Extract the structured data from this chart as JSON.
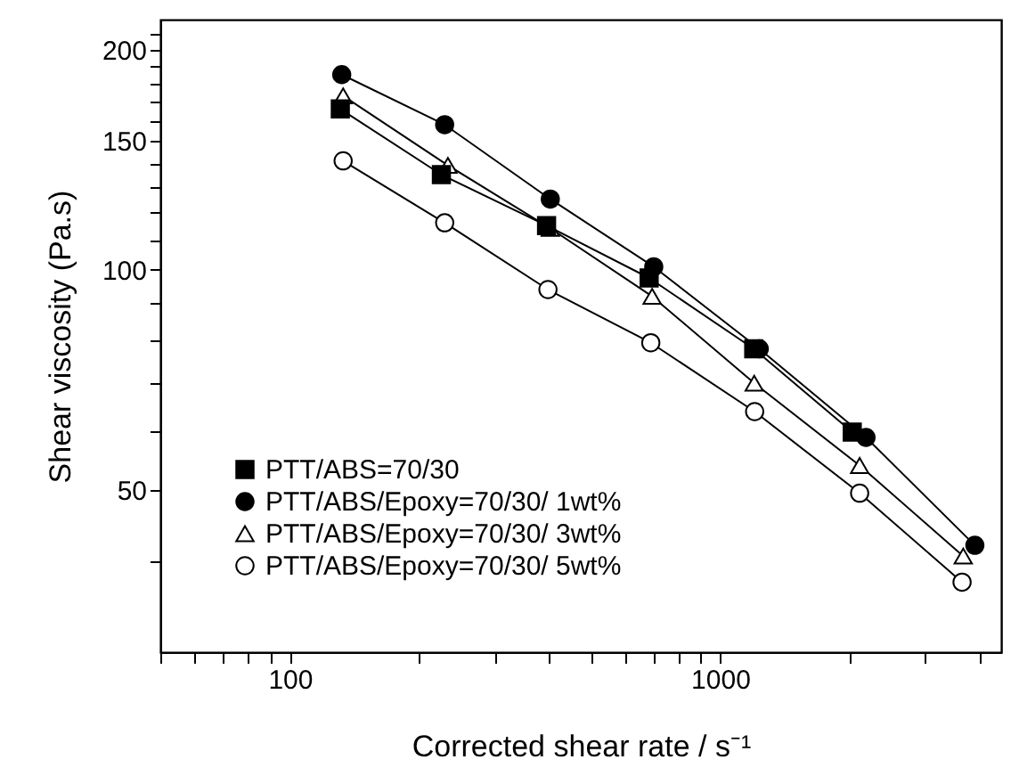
{
  "chart_data": {
    "type": "line",
    "xlabel": "Corrected shear rate / s⁻¹",
    "ylabel": "Shear viscosity (Pa.s)",
    "log": "xy",
    "grid": false,
    "legend": "bottom left",
    "line_style": "solid",
    "xlim": [
      50,
      4500
    ],
    "ylim": [
      30,
      220
    ],
    "xticks": [
      {
        "value": 50,
        "label": null
      },
      {
        "value": 60,
        "label": null
      },
      {
        "value": 70,
        "label": null
      },
      {
        "value": 80,
        "label": null
      },
      {
        "value": 90,
        "label": null
      },
      100,
      {
        "value": 200,
        "label": null
      },
      {
        "value": 300,
        "label": null
      },
      {
        "value": 400,
        "label": null
      },
      {
        "value": 500,
        "label": null
      },
      {
        "value": 600,
        "label": null
      },
      {
        "value": 700,
        "label": null
      },
      {
        "value": 800,
        "label": null
      },
      {
        "value": 900,
        "label": null
      },
      1000,
      {
        "value": 2000,
        "label": null
      },
      {
        "value": 3000,
        "label": null
      },
      {
        "value": 4000,
        "label": null
      }
    ],
    "yticks": [
      {
        "value": 40,
        "label": null
      },
      50,
      {
        "value": 60,
        "label": null
      },
      {
        "value": 70,
        "label": null
      },
      {
        "value": 80,
        "label": null
      },
      {
        "value": 90,
        "label": null
      },
      100,
      {
        "value": 110,
        "label": null
      },
      {
        "value": 120,
        "label": null
      },
      {
        "value": 130,
        "label": null
      },
      {
        "value": 140,
        "label": null
      },
      150,
      {
        "value": 160,
        "label": null
      },
      {
        "value": 170,
        "label": null
      },
      {
        "value": 180,
        "label": null
      },
      {
        "value": 190,
        "label": null
      },
      200,
      {
        "value": 210,
        "label": null
      }
    ],
    "series": [
      {
        "name": "PTT/ABS=70/30",
        "color": "#000000",
        "marker": "square",
        "x": [
          131,
          225,
          395,
          684,
          1197,
          2028
        ],
        "values": [
          166,
          135,
          115,
          97.5,
          78,
          60
        ]
      },
      {
        "name": "PTT/ABS/Epoxy=70/30/ 1wt%",
        "color": "#000000",
        "marker": "circle",
        "x": [
          132,
          229,
          403,
          701,
          1233,
          2183,
          3909
        ],
        "values": [
          185,
          158,
          125,
          101,
          78,
          59,
          42
        ]
      },
      {
        "name": "PTT/ABS/Epoxy=70/30/ 3wt%",
        "color": "#ffffff",
        "marker": "triangle",
        "x": [
          133,
          233,
          403,
          695,
          1200,
          2110,
          3673
        ],
        "values": [
          173,
          139,
          114,
          92,
          70,
          54,
          40.6
        ]
      },
      {
        "name": "PTT/ABS/Epoxy=70/30/ 5wt%",
        "color": "#ffffff",
        "marker": "circle",
        "x": [
          133,
          229,
          398,
          690,
          1203,
          2110,
          3650
        ],
        "values": [
          141,
          116,
          94,
          79.5,
          64,
          49.5,
          37.4
        ]
      }
    ]
  }
}
